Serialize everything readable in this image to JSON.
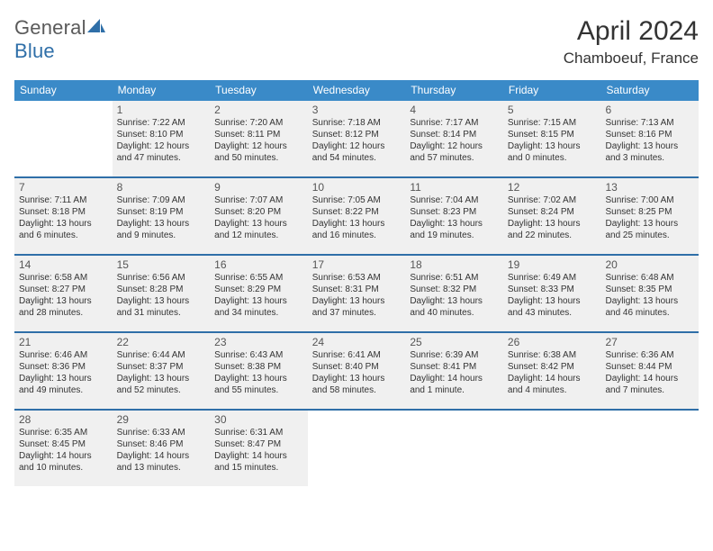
{
  "logo": {
    "text1": "General",
    "text2": "Blue"
  },
  "title": "April 2024",
  "subtitle": "Chamboeuf, France",
  "colors": {
    "header_bar": "#3a8ac8",
    "header_text": "#ffffff",
    "rule": "#2f6fa8",
    "shade_bg": "#f0f0f0",
    "text": "#333333",
    "logo_gray": "#5a5a5a",
    "logo_blue": "#2f6fa8"
  },
  "dow": [
    "Sunday",
    "Monday",
    "Tuesday",
    "Wednesday",
    "Thursday",
    "Friday",
    "Saturday"
  ],
  "weeks": [
    [
      {
        "n": "",
        "lines": [],
        "shade": false,
        "empty": true
      },
      {
        "n": "1",
        "lines": [
          "Sunrise: 7:22 AM",
          "Sunset: 8:10 PM",
          "Daylight: 12 hours and 47 minutes."
        ],
        "shade": true
      },
      {
        "n": "2",
        "lines": [
          "Sunrise: 7:20 AM",
          "Sunset: 8:11 PM",
          "Daylight: 12 hours and 50 minutes."
        ],
        "shade": true
      },
      {
        "n": "3",
        "lines": [
          "Sunrise: 7:18 AM",
          "Sunset: 8:12 PM",
          "Daylight: 12 hours and 54 minutes."
        ],
        "shade": true
      },
      {
        "n": "4",
        "lines": [
          "Sunrise: 7:17 AM",
          "Sunset: 8:14 PM",
          "Daylight: 12 hours and 57 minutes."
        ],
        "shade": true
      },
      {
        "n": "5",
        "lines": [
          "Sunrise: 7:15 AM",
          "Sunset: 8:15 PM",
          "Daylight: 13 hours and 0 minutes."
        ],
        "shade": true
      },
      {
        "n": "6",
        "lines": [
          "Sunrise: 7:13 AM",
          "Sunset: 8:16 PM",
          "Daylight: 13 hours and 3 minutes."
        ],
        "shade": true
      }
    ],
    [
      {
        "n": "7",
        "lines": [
          "Sunrise: 7:11 AM",
          "Sunset: 8:18 PM",
          "Daylight: 13 hours and 6 minutes."
        ],
        "shade": true
      },
      {
        "n": "8",
        "lines": [
          "Sunrise: 7:09 AM",
          "Sunset: 8:19 PM",
          "Daylight: 13 hours and 9 minutes."
        ],
        "shade": true
      },
      {
        "n": "9",
        "lines": [
          "Sunrise: 7:07 AM",
          "Sunset: 8:20 PM",
          "Daylight: 13 hours and 12 minutes."
        ],
        "shade": true
      },
      {
        "n": "10",
        "lines": [
          "Sunrise: 7:05 AM",
          "Sunset: 8:22 PM",
          "Daylight: 13 hours and 16 minutes."
        ],
        "shade": true
      },
      {
        "n": "11",
        "lines": [
          "Sunrise: 7:04 AM",
          "Sunset: 8:23 PM",
          "Daylight: 13 hours and 19 minutes."
        ],
        "shade": true
      },
      {
        "n": "12",
        "lines": [
          "Sunrise: 7:02 AM",
          "Sunset: 8:24 PM",
          "Daylight: 13 hours and 22 minutes."
        ],
        "shade": true
      },
      {
        "n": "13",
        "lines": [
          "Sunrise: 7:00 AM",
          "Sunset: 8:25 PM",
          "Daylight: 13 hours and 25 minutes."
        ],
        "shade": true
      }
    ],
    [
      {
        "n": "14",
        "lines": [
          "Sunrise: 6:58 AM",
          "Sunset: 8:27 PM",
          "Daylight: 13 hours and 28 minutes."
        ],
        "shade": true
      },
      {
        "n": "15",
        "lines": [
          "Sunrise: 6:56 AM",
          "Sunset: 8:28 PM",
          "Daylight: 13 hours and 31 minutes."
        ],
        "shade": true
      },
      {
        "n": "16",
        "lines": [
          "Sunrise: 6:55 AM",
          "Sunset: 8:29 PM",
          "Daylight: 13 hours and 34 minutes."
        ],
        "shade": true
      },
      {
        "n": "17",
        "lines": [
          "Sunrise: 6:53 AM",
          "Sunset: 8:31 PM",
          "Daylight: 13 hours and 37 minutes."
        ],
        "shade": true
      },
      {
        "n": "18",
        "lines": [
          "Sunrise: 6:51 AM",
          "Sunset: 8:32 PM",
          "Daylight: 13 hours and 40 minutes."
        ],
        "shade": true
      },
      {
        "n": "19",
        "lines": [
          "Sunrise: 6:49 AM",
          "Sunset: 8:33 PM",
          "Daylight: 13 hours and 43 minutes."
        ],
        "shade": true
      },
      {
        "n": "20",
        "lines": [
          "Sunrise: 6:48 AM",
          "Sunset: 8:35 PM",
          "Daylight: 13 hours and 46 minutes."
        ],
        "shade": true
      }
    ],
    [
      {
        "n": "21",
        "lines": [
          "Sunrise: 6:46 AM",
          "Sunset: 8:36 PM",
          "Daylight: 13 hours and 49 minutes."
        ],
        "shade": true
      },
      {
        "n": "22",
        "lines": [
          "Sunrise: 6:44 AM",
          "Sunset: 8:37 PM",
          "Daylight: 13 hours and 52 minutes."
        ],
        "shade": true
      },
      {
        "n": "23",
        "lines": [
          "Sunrise: 6:43 AM",
          "Sunset: 8:38 PM",
          "Daylight: 13 hours and 55 minutes."
        ],
        "shade": true
      },
      {
        "n": "24",
        "lines": [
          "Sunrise: 6:41 AM",
          "Sunset: 8:40 PM",
          "Daylight: 13 hours and 58 minutes."
        ],
        "shade": true
      },
      {
        "n": "25",
        "lines": [
          "Sunrise: 6:39 AM",
          "Sunset: 8:41 PM",
          "Daylight: 14 hours and 1 minute."
        ],
        "shade": true
      },
      {
        "n": "26",
        "lines": [
          "Sunrise: 6:38 AM",
          "Sunset: 8:42 PM",
          "Daylight: 14 hours and 4 minutes."
        ],
        "shade": true
      },
      {
        "n": "27",
        "lines": [
          "Sunrise: 6:36 AM",
          "Sunset: 8:44 PM",
          "Daylight: 14 hours and 7 minutes."
        ],
        "shade": true
      }
    ],
    [
      {
        "n": "28",
        "lines": [
          "Sunrise: 6:35 AM",
          "Sunset: 8:45 PM",
          "Daylight: 14 hours and 10 minutes."
        ],
        "shade": true
      },
      {
        "n": "29",
        "lines": [
          "Sunrise: 6:33 AM",
          "Sunset: 8:46 PM",
          "Daylight: 14 hours and 13 minutes."
        ],
        "shade": true
      },
      {
        "n": "30",
        "lines": [
          "Sunrise: 6:31 AM",
          "Sunset: 8:47 PM",
          "Daylight: 14 hours and 15 minutes."
        ],
        "shade": true
      },
      {
        "n": "",
        "lines": [],
        "shade": false,
        "empty": true
      },
      {
        "n": "",
        "lines": [],
        "shade": false,
        "empty": true
      },
      {
        "n": "",
        "lines": [],
        "shade": false,
        "empty": true
      },
      {
        "n": "",
        "lines": [],
        "shade": false,
        "empty": true
      }
    ]
  ]
}
